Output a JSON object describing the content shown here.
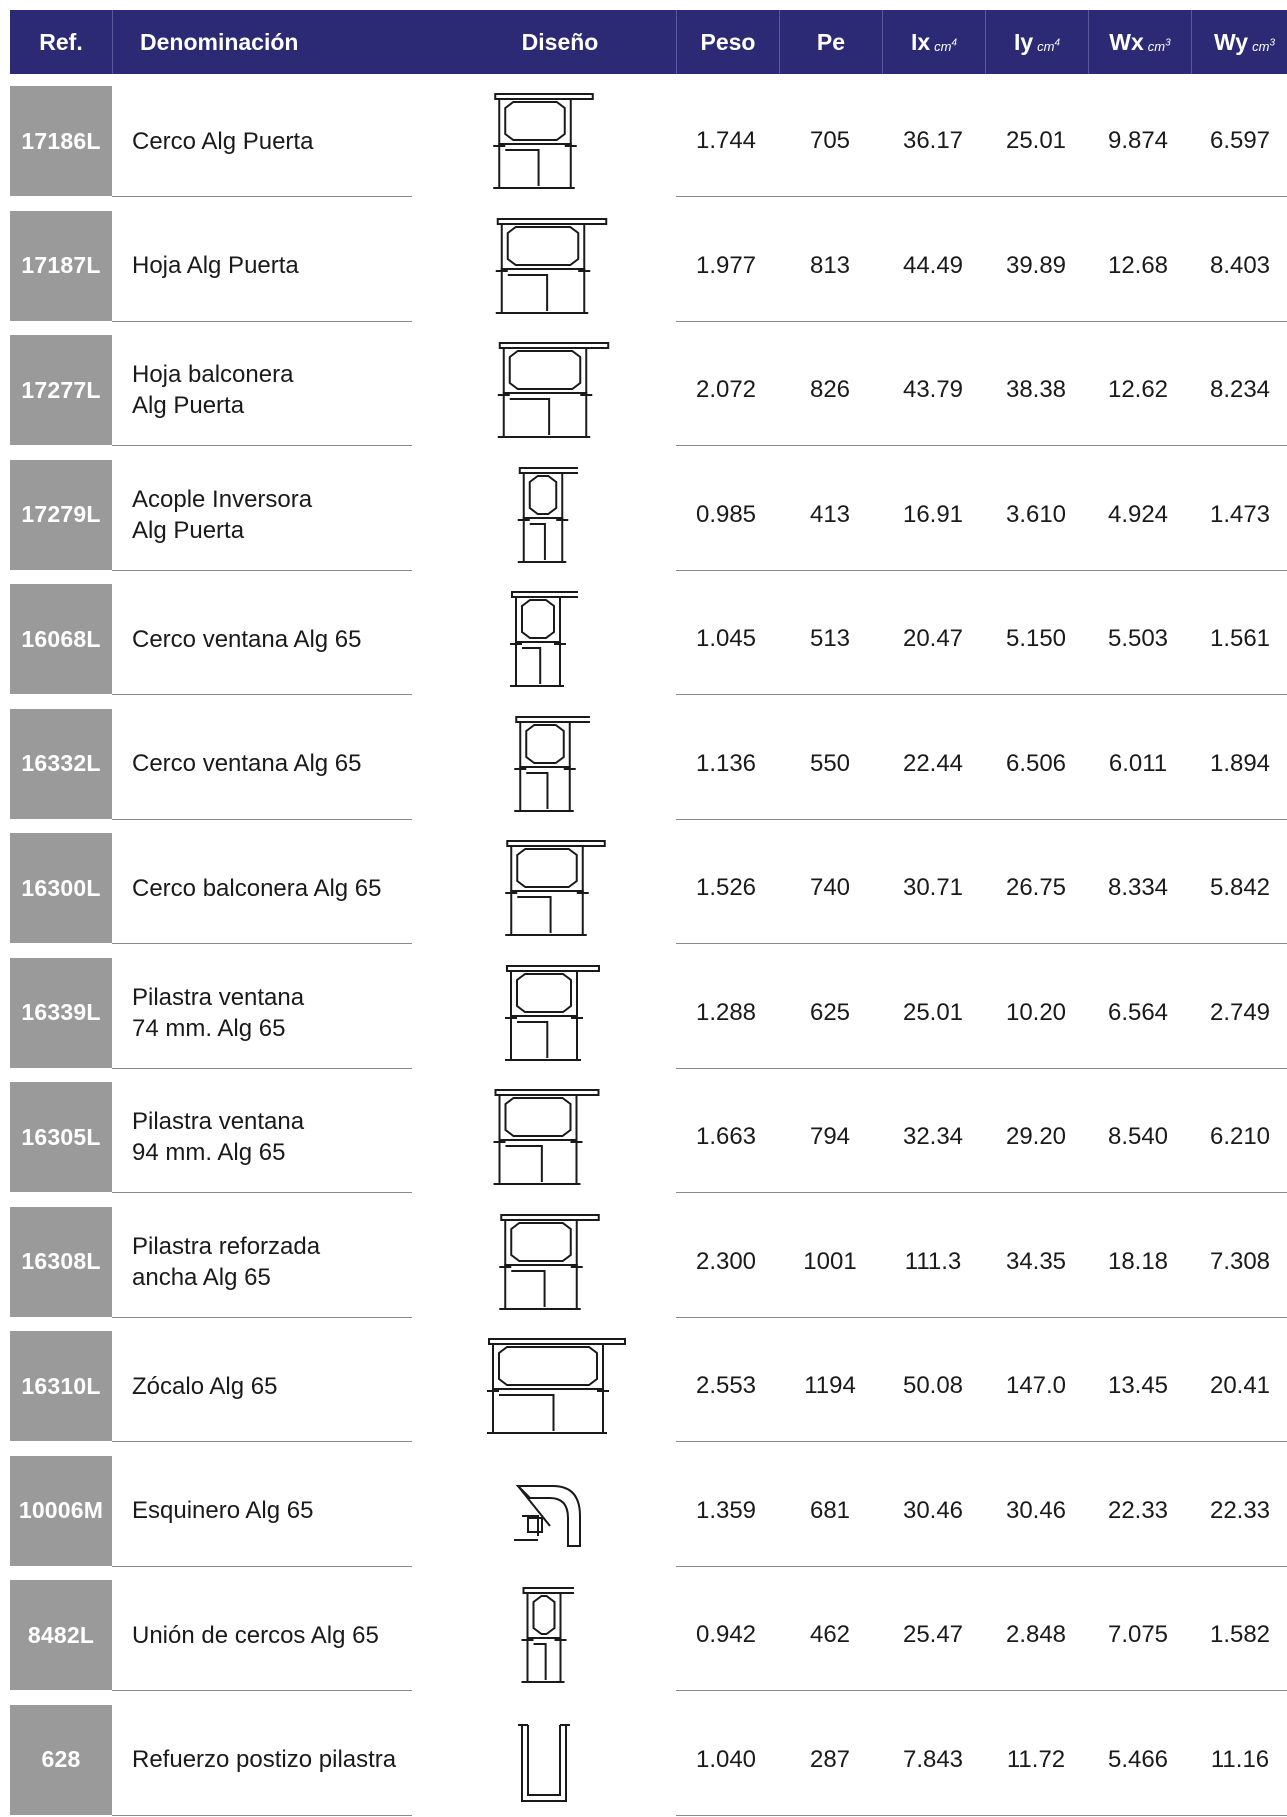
{
  "header": {
    "ref": "Ref.",
    "name": "Denominación",
    "design": "Diseño",
    "peso": "Peso",
    "pe": "Pe",
    "ix": "Ix",
    "ix_unit": "cm",
    "ix_exp": "4",
    "iy": "Iy",
    "iy_unit": "cm",
    "iy_exp": "4",
    "wx": "Wx",
    "wx_unit": "cm",
    "wx_exp": "3",
    "wy": "Wy",
    "wy_unit": "cm",
    "wy_exp": "3"
  },
  "rows": [
    {
      "ref": "17186L",
      "name1": "Cerco Alg Puerta",
      "name2": "",
      "peso": "1.744",
      "pe": "705",
      "ix": "36.17",
      "iy": "25.01",
      "wx": "9.874",
      "wy": "6.597",
      "drawing": "profile-drawing-icon"
    },
    {
      "ref": "17187L",
      "name1": "Hoja Alg Puerta",
      "name2": "",
      "peso": "1.977",
      "pe": "813",
      "ix": "44.49",
      "iy": "39.89",
      "wx": "12.68",
      "wy": "8.403",
      "drawing": "profile-drawing-icon"
    },
    {
      "ref": "17277L",
      "name1": "Hoja balconera",
      "name2": "Alg Puerta",
      "peso": "2.072",
      "pe": "826",
      "ix": "43.79",
      "iy": "38.38",
      "wx": "12.62",
      "wy": "8.234",
      "drawing": "profile-drawing-icon"
    },
    {
      "ref": "17279L",
      "name1": "Acople Inversora",
      "name2": "Alg Puerta",
      "peso": "0.985",
      "pe": "413",
      "ix": "16.91",
      "iy": "3.610",
      "wx": "4.924",
      "wy": "1.473",
      "drawing": "profile-drawing-icon"
    },
    {
      "ref": "16068L",
      "name1": "Cerco ventana Alg 65",
      "name2": "",
      "peso": "1.045",
      "pe": "513",
      "ix": "20.47",
      "iy": "5.150",
      "wx": "5.503",
      "wy": "1.561",
      "drawing": "profile-drawing-icon"
    },
    {
      "ref": "16332L",
      "name1": "Cerco ventana Alg 65",
      "name2": "",
      "peso": "1.136",
      "pe": "550",
      "ix": "22.44",
      "iy": "6.506",
      "wx": "6.011",
      "wy": "1.894",
      "drawing": "profile-drawing-icon"
    },
    {
      "ref": "16300L",
      "name1": "Cerco balconera Alg 65",
      "name2": "",
      "peso": "1.526",
      "pe": "740",
      "ix": "30.71",
      "iy": "26.75",
      "wx": "8.334",
      "wy": "5.842",
      "drawing": "profile-drawing-icon"
    },
    {
      "ref": "16339L",
      "name1": "Pilastra ventana",
      "name2": "74 mm. Alg 65",
      "peso": "1.288",
      "pe": "625",
      "ix": "25.01",
      "iy": "10.20",
      "wx": "6.564",
      "wy": "2.749",
      "drawing": "profile-drawing-icon"
    },
    {
      "ref": "16305L",
      "name1": "Pilastra ventana",
      "name2": "94 mm. Alg 65",
      "peso": "1.663",
      "pe": "794",
      "ix": "32.34",
      "iy": "29.20",
      "wx": "8.540",
      "wy": "6.210",
      "drawing": "profile-drawing-icon"
    },
    {
      "ref": "16308L",
      "name1": "Pilastra reforzada",
      "name2": "ancha Alg 65",
      "peso": "2.300",
      "pe": "1001",
      "ix": "111.3",
      "iy": "34.35",
      "wx": "18.18",
      "wy": "7.308",
      "drawing": "profile-drawing-icon"
    },
    {
      "ref": "16310L",
      "name1": "Zócalo Alg 65",
      "name2": "",
      "peso": "2.553",
      "pe": "1194",
      "ix": "50.08",
      "iy": "147.0",
      "wx": "13.45",
      "wy": "20.41",
      "drawing": "profile-drawing-icon"
    },
    {
      "ref": "10006M",
      "name1": "Esquinero Alg 65",
      "name2": "",
      "peso": "1.359",
      "pe": "681",
      "ix": "30.46",
      "iy": "30.46",
      "wx": "22.33",
      "wy": "22.33",
      "drawing": "corner-profile-drawing-icon"
    },
    {
      "ref": "8482L",
      "name1": "Unión de cercos Alg 65",
      "name2": "",
      "peso": "0.942",
      "pe": "462",
      "ix": "25.47",
      "iy": "2.848",
      "wx": "7.075",
      "wy": "1.582",
      "drawing": "profile-drawing-icon"
    },
    {
      "ref": "628",
      "name1": "Refuerzo postizo pilastra",
      "name2": "",
      "peso": "1.040",
      "pe": "287",
      "ix": "7.843",
      "iy": "11.72",
      "wx": "5.466",
      "wy": "11.16",
      "drawing": "u-channel-drawing-icon"
    }
  ]
}
